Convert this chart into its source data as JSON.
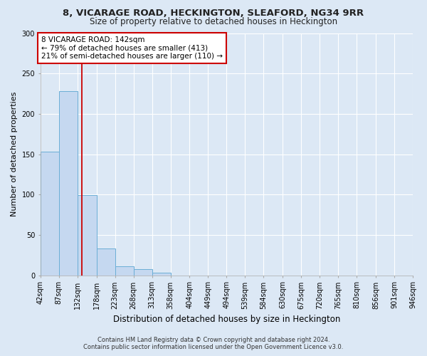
{
  "title": "8, VICARAGE ROAD, HECKINGTON, SLEAFORD, NG34 9RR",
  "subtitle": "Size of property relative to detached houses in Heckington",
  "xlabel": "Distribution of detached houses by size in Heckington",
  "ylabel": "Number of detached properties",
  "footer_line1": "Contains HM Land Registry data © Crown copyright and database right 2024.",
  "footer_line2": "Contains public sector information licensed under the Open Government Licence v3.0.",
  "bin_edges": [
    42,
    87,
    132,
    178,
    223,
    268,
    313,
    358,
    404,
    449,
    494,
    539,
    584,
    630,
    675,
    720,
    765,
    810,
    856,
    901,
    946
  ],
  "bar_heights": [
    153,
    228,
    99,
    33,
    11,
    8,
    3,
    0,
    0,
    0,
    0,
    0,
    0,
    0,
    0,
    0,
    0,
    0,
    0,
    0
  ],
  "bar_color": "#c5d8f0",
  "bar_edgecolor": "#6baed6",
  "vline_x": 142,
  "vline_color": "#cc0000",
  "annotation_text": "8 VICARAGE ROAD: 142sqm\n← 79% of detached houses are smaller (413)\n21% of semi-detached houses are larger (110) →",
  "annotation_box_color": "#ffffff",
  "annotation_border_color": "#cc0000",
  "ylim": [
    0,
    300
  ],
  "yticks": [
    0,
    50,
    100,
    150,
    200,
    250,
    300
  ],
  "background_color": "#dce8f5",
  "plot_bg_color": "#dce8f5",
  "grid_color": "#ffffff",
  "tick_label_fontsize": 7,
  "title_fontsize": 9.5,
  "subtitle_fontsize": 8.5,
  "xlabel_fontsize": 8.5,
  "ylabel_fontsize": 8,
  "annotation_fontsize": 7.5
}
